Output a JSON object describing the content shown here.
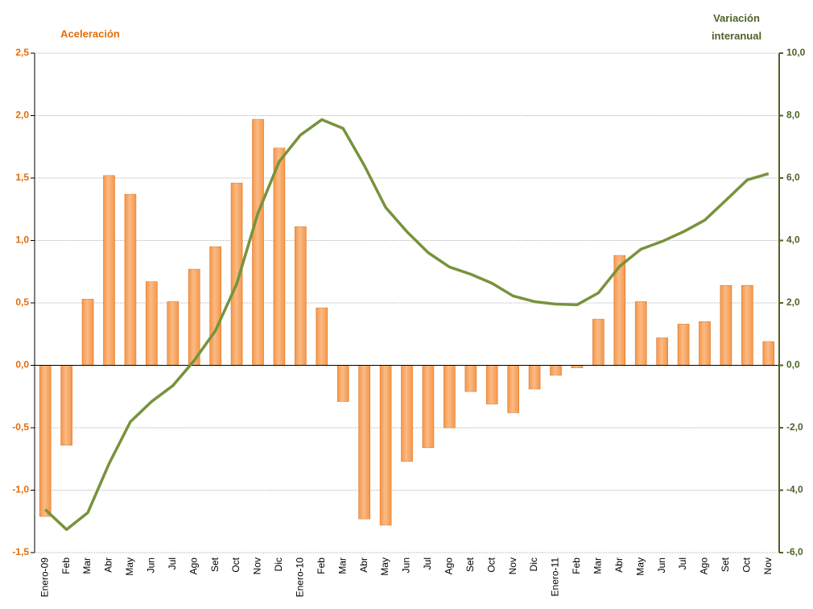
{
  "chart_data": {
    "type": "bar-line",
    "y_label": "Aceleración",
    "y2_label": "Variación interanual",
    "categories": [
      "Enero-09",
      "Feb",
      "Mar",
      "Abr",
      "May",
      "Jun",
      "Jul",
      "Ago",
      "Set",
      "Oct",
      "Nov",
      "Dic",
      "Enero-10",
      "Feb",
      "Mar",
      "Abr",
      "May",
      "Jun",
      "Jul",
      "Ago",
      "Set",
      "Oct",
      "Nov",
      "Dic",
      "Enero-11",
      "Feb",
      "Mar",
      "Abr",
      "May",
      "Jun",
      "Jul",
      "Ago",
      "Set",
      "Oct",
      "Nov"
    ],
    "series": [
      {
        "type": "bar",
        "color": "#f79646",
        "values": [
          -1.21,
          -0.64,
          0.53,
          1.52,
          1.37,
          0.67,
          0.51,
          0.77,
          0.95,
          1.46,
          1.97,
          1.74,
          1.11,
          0.46,
          -0.29,
          -1.23,
          -1.28,
          -0.77,
          -0.66,
          -0.5,
          -0.21,
          -0.31,
          -0.38,
          -0.19,
          -0.08,
          -0.02,
          0.37,
          0.88,
          0.51,
          0.22,
          0.33,
          0.35,
          0.64,
          0.64,
          0.19
        ]
      },
      {
        "type": "line",
        "axis": "y2",
        "color": "#77933c",
        "values": [
          -4.62,
          -5.26,
          -4.72,
          -3.15,
          -1.81,
          -1.16,
          -0.65,
          0.15,
          1.11,
          2.61,
          4.88,
          6.53,
          7.38,
          7.87,
          7.59,
          6.4,
          5.06,
          4.28,
          3.61,
          3.15,
          2.92,
          2.63,
          2.22,
          2.04,
          1.96,
          1.94,
          2.32,
          3.17,
          3.72,
          3.97,
          4.28,
          4.65,
          5.29,
          5.94,
          6.14
        ]
      }
    ],
    "ylim": [
      -1.5,
      2.5
    ],
    "yticks": [
      {
        "value": -1.5,
        "label": "-1,5"
      },
      {
        "value": -1,
        "label": "-1,0"
      },
      {
        "value": -0.5,
        "label": "-0,5"
      },
      {
        "value": 0,
        "label": "0,0"
      },
      {
        "value": 0.5,
        "label": "0,5"
      },
      {
        "value": 1,
        "label": "1,0"
      },
      {
        "value": 1.5,
        "label": "1,5"
      },
      {
        "value": 2,
        "label": "2,0"
      },
      {
        "value": 2.5,
        "label": "2,5"
      }
    ],
    "y2lim": [
      -6,
      10
    ],
    "y2ticks": [
      {
        "value": -6,
        "label": "-6,0"
      },
      {
        "value": -4,
        "label": "-4,0"
      },
      {
        "value": -2,
        "label": "-2,0"
      },
      {
        "value": 0,
        "label": "0,0"
      },
      {
        "value": 2,
        "label": "2,0"
      },
      {
        "value": 4,
        "label": "4,0"
      },
      {
        "value": 6,
        "label": "6,0"
      },
      {
        "value": 8,
        "label": "8,0"
      },
      {
        "value": 10,
        "label": "10,0"
      }
    ],
    "grid": true
  }
}
